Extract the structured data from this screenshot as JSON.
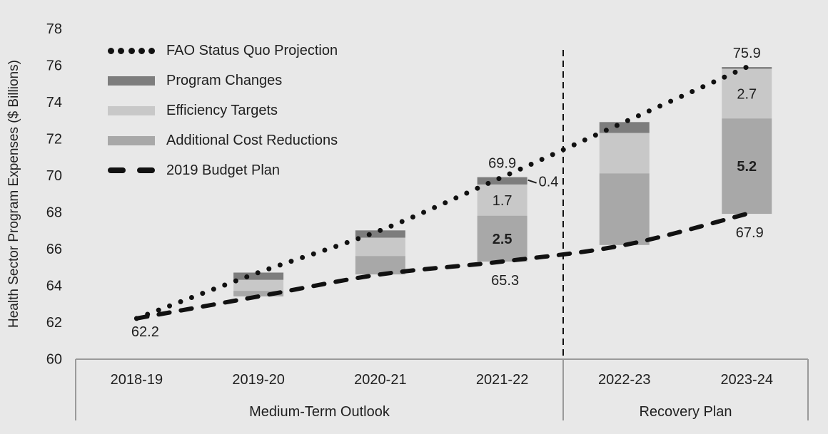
{
  "chart_data": {
    "type": "combo-stacked-bar-line",
    "ylabel": "Health Sector Program Expenses ($ Billions)",
    "ylim": [
      60,
      78
    ],
    "yticks": [
      60,
      62,
      64,
      66,
      68,
      70,
      72,
      74,
      76,
      78
    ],
    "grid": false,
    "legend_position": "top-left-inside",
    "categories": [
      "2018-19",
      "2019-20",
      "2020-21",
      "2021-22",
      "2022-23",
      "2023-24"
    ],
    "category_groups": [
      {
        "label": "Medium-Term Outlook",
        "span": [
          0,
          3
        ]
      },
      {
        "label": "Recovery Plan",
        "span": [
          4,
          5
        ]
      }
    ],
    "divider_after_category": 3,
    "lines": [
      {
        "name": "FAO Status Quo Projection",
        "style": "dotted",
        "color": "#111111",
        "values": [
          62.2,
          64.7,
          67.0,
          69.9,
          72.9,
          75.9
        ]
      },
      {
        "name": "2019 Budget Plan",
        "style": "dashed",
        "color": "#111111",
        "values": [
          62.2,
          63.4,
          64.6,
          65.3,
          66.2,
          67.9
        ]
      }
    ],
    "bar_series": [
      {
        "name": "Program Changes",
        "color": "#7d7d7d",
        "values": [
          null,
          0.4,
          0.4,
          0.4,
          0.6,
          0.1
        ]
      },
      {
        "name": "Efficiency Targets",
        "color": "#c8c8c8",
        "values": [
          null,
          0.6,
          1.0,
          1.7,
          2.2,
          2.7
        ]
      },
      {
        "name": "Additional Cost Reductions",
        "color": "#a8a8a8",
        "values": [
          null,
          0.3,
          1.0,
          2.5,
          3.9,
          5.2
        ]
      }
    ],
    "bars_hang_from_line": "FAO Status Quo Projection",
    "annotations": [
      {
        "text": "62.2",
        "type": "point",
        "category": 0,
        "dx": 12
      },
      {
        "text": "69.9",
        "type": "bar-top",
        "category": 3
      },
      {
        "text": "0.4",
        "type": "segment-callout",
        "category": 3,
        "series": 0
      },
      {
        "text": "1.7",
        "type": "segment",
        "category": 3,
        "series": 1
      },
      {
        "text": "2.5",
        "type": "segment",
        "category": 3,
        "series": 2,
        "bold": true
      },
      {
        "text": "65.3",
        "type": "bar-bottom",
        "category": 3
      },
      {
        "text": "75.9",
        "type": "bar-top",
        "category": 5
      },
      {
        "text": "2.7",
        "type": "segment",
        "category": 5,
        "series": 1
      },
      {
        "text": "5.2",
        "type": "segment",
        "category": 5,
        "series": 2,
        "bold": true
      },
      {
        "text": "67.9",
        "type": "bar-bottom",
        "category": 5
      }
    ]
  },
  "legend": {
    "items": [
      {
        "label": "FAO Status Quo Projection",
        "sample": "dotted-line"
      },
      {
        "label": "Program Changes",
        "sample": "swatch"
      },
      {
        "label": "Efficiency Targets",
        "sample": "swatch"
      },
      {
        "label": "Additional Cost Reductions",
        "sample": "swatch"
      },
      {
        "label": "2019 Budget Plan",
        "sample": "dashed-line"
      }
    ]
  },
  "colors": {
    "background": "#e8e8e8",
    "axis_line": "#9a9a9a",
    "text": "#1f1f1f",
    "line_black": "#111111"
  }
}
